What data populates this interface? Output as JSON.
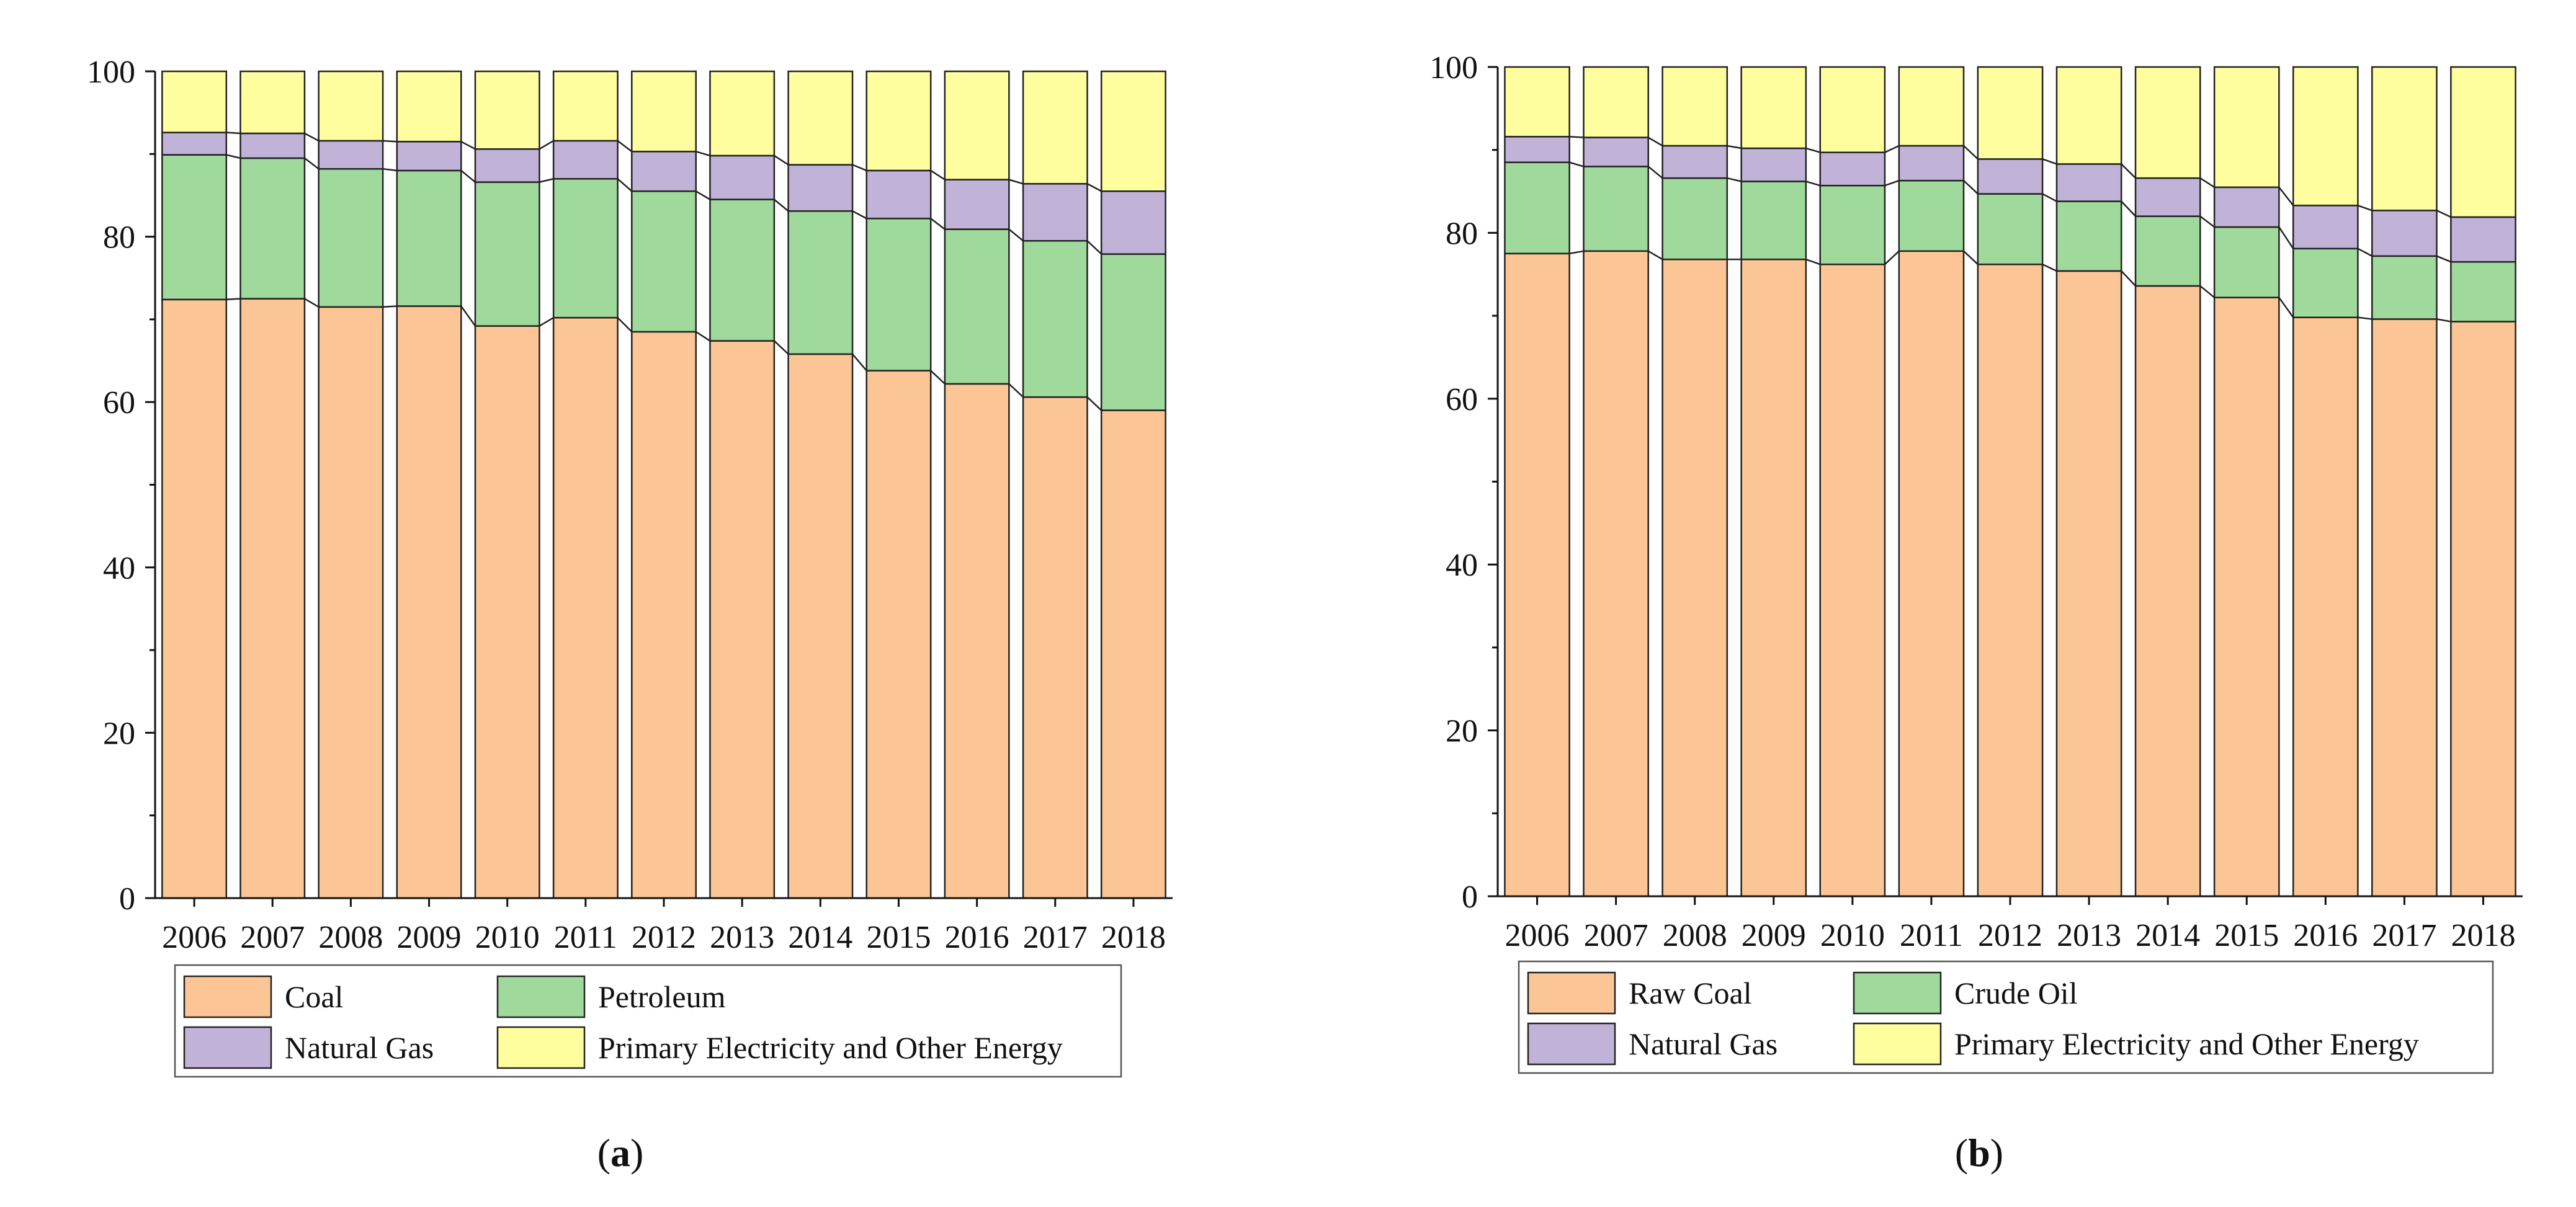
{
  "colors": {
    "coal": "#FBC595",
    "oil": "#9FD99B",
    "gas": "#C1B2D8",
    "other": "#FEFE9F",
    "stroke": "#222222"
  },
  "chart_data": [
    {
      "type": "bar",
      "stacked": true,
      "panel_label": "a",
      "ylim": [
        0,
        100
      ],
      "yticks": [
        "0",
        "20",
        "40",
        "60",
        "80",
        "100"
      ],
      "grid": false,
      "legend_position": "bottom",
      "categories": [
        "2006",
        "2007",
        "2008",
        "2009",
        "2010",
        "2011",
        "2012",
        "2013",
        "2014",
        "2015",
        "2016",
        "2017",
        "2018"
      ],
      "series": [
        {
          "name": "Coal",
          "color_key": "coal",
          "values": [
            72.4,
            72.5,
            71.5,
            71.6,
            69.2,
            70.2,
            68.5,
            67.4,
            65.8,
            63.8,
            62.2,
            60.6,
            59.0
          ]
        },
        {
          "name": "Petroleum",
          "color_key": "oil",
          "values": [
            17.5,
            17.0,
            16.7,
            16.4,
            17.4,
            16.8,
            17.0,
            17.1,
            17.3,
            18.4,
            18.7,
            18.9,
            18.9
          ]
        },
        {
          "name": "Natural Gas",
          "color_key": "gas",
          "values": [
            2.7,
            3.0,
            3.4,
            3.5,
            4.0,
            4.6,
            4.8,
            5.3,
            5.6,
            5.8,
            6.0,
            6.9,
            7.6
          ]
        },
        {
          "name": "Primary Electricity and Other Energy",
          "color_key": "other",
          "values": [
            7.4,
            7.5,
            8.4,
            8.5,
            9.4,
            8.4,
            9.7,
            10.2,
            11.3,
            12.0,
            13.1,
            13.6,
            14.5
          ]
        }
      ]
    },
    {
      "type": "bar",
      "stacked": true,
      "panel_label": "b",
      "ylim": [
        0,
        100
      ],
      "yticks": [
        "0",
        "20",
        "40",
        "60",
        "80",
        "100"
      ],
      "grid": false,
      "legend_position": "bottom",
      "categories": [
        "2006",
        "2007",
        "2008",
        "2009",
        "2010",
        "2011",
        "2012",
        "2013",
        "2014",
        "2015",
        "2016",
        "2017",
        "2018"
      ],
      "series": [
        {
          "name": "Raw Coal",
          "color_key": "coal",
          "values": [
            77.5,
            77.8,
            76.8,
            76.8,
            76.2,
            77.8,
            76.2,
            75.4,
            73.6,
            72.2,
            69.8,
            69.6,
            69.3
          ]
        },
        {
          "name": "Crude Oil",
          "color_key": "oil",
          "values": [
            11.0,
            10.2,
            9.8,
            9.4,
            9.5,
            8.5,
            8.5,
            8.4,
            8.4,
            8.5,
            8.3,
            7.6,
            7.2
          ]
        },
        {
          "name": "Natural Gas",
          "color_key": "gas",
          "values": [
            3.1,
            3.5,
            3.9,
            4.0,
            4.0,
            4.2,
            4.2,
            4.5,
            4.6,
            4.8,
            5.2,
            5.5,
            5.4
          ]
        },
        {
          "name": "Primary Electricity and Other Energy",
          "color_key": "other",
          "values": [
            8.4,
            8.5,
            9.5,
            9.8,
            10.3,
            9.5,
            11.1,
            11.7,
            13.4,
            14.5,
            16.7,
            17.3,
            18.1
          ]
        }
      ]
    }
  ]
}
